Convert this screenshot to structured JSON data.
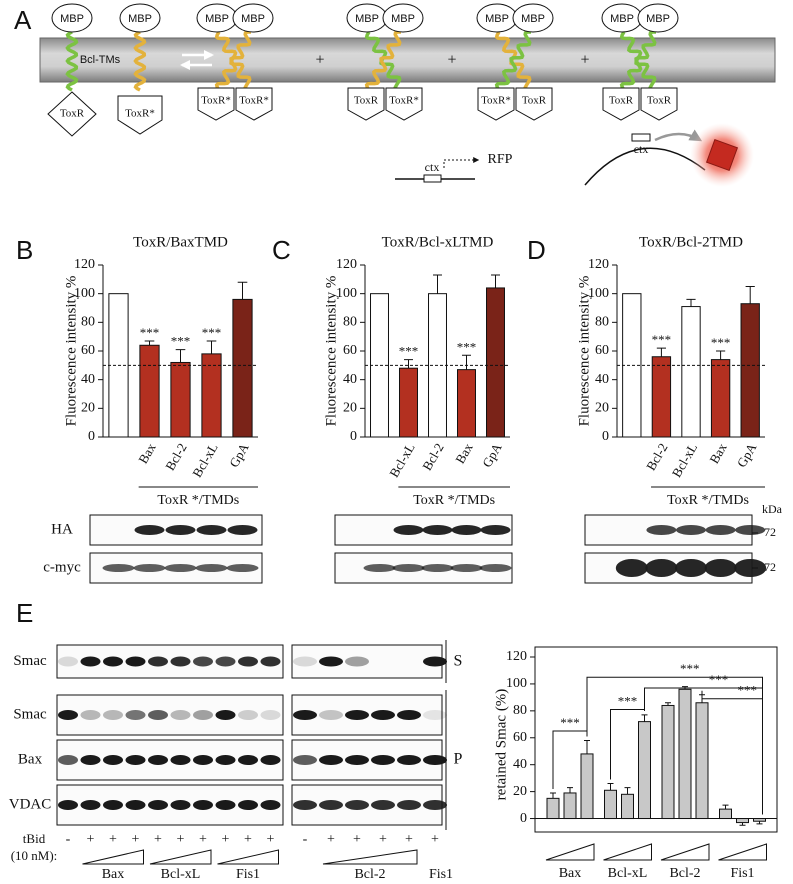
{
  "panels": [
    "A",
    "B",
    "C",
    "D",
    "E"
  ],
  "diagram": {
    "mbp": [
      "MBP",
      "MBP",
      "MBP",
      "MBP",
      "MBP",
      "MBP",
      "MBP",
      "MBP",
      "MBP",
      "MBP"
    ],
    "tm_label": "Bcl-TMs",
    "boxes": [
      "ToxR",
      "ToxR*",
      "ToxR*",
      "ToxR*",
      "ToxR",
      "ToxR*",
      "ToxR*",
      "ToxR",
      "ToxR",
      "ToxR"
    ],
    "plus": [
      "+",
      "+",
      "+"
    ],
    "ctx": [
      "ctx",
      "ctx"
    ],
    "reporter": "RFP"
  },
  "chart_data": [
    {
      "type": "bar",
      "title": "ToxR/BaxTMD",
      "ylabel": "Fluorescence intensity %",
      "categories": [
        null,
        "Bax",
        "Bcl-2",
        "Bcl-xL",
        "GpA"
      ],
      "values": [
        100,
        64,
        52,
        58,
        96
      ],
      "errors": [
        null,
        3,
        9,
        9,
        12
      ],
      "colors": [
        "#ffffff",
        "#b33020",
        "#b33020",
        "#b33020",
        "#7a2318"
      ],
      "stars": [
        null,
        "***",
        "***",
        "***",
        null
      ],
      "ylim": [
        0,
        120
      ],
      "yticks": [
        0,
        20,
        40,
        60,
        80,
        100,
        120
      ],
      "hline": 50,
      "group_label": "ToxR */TMDs",
      "blot_rows": [
        "HA",
        "c-myc"
      ]
    },
    {
      "type": "bar",
      "title": "ToxR/Bcl-xLTMD",
      "ylabel": "Fluorescence intensity %",
      "categories": [
        null,
        "Bcl-xL",
        "Bcl-2",
        "Bax",
        "GpA"
      ],
      "values": [
        100,
        48,
        100,
        47,
        104
      ],
      "errors": [
        null,
        6,
        13,
        10,
        9
      ],
      "colors": [
        "#ffffff",
        "#b33020",
        "#ffffff",
        "#b33020",
        "#7a2318"
      ],
      "stars": [
        null,
        "***",
        null,
        "***",
        null
      ],
      "ylim": [
        0,
        120
      ],
      "yticks": [
        0,
        20,
        40,
        60,
        80,
        100,
        120
      ],
      "hline": 50,
      "group_label": "ToxR */TMDs"
    },
    {
      "type": "bar",
      "title": "ToxR/Bcl-2TMD",
      "ylabel": "Fluorescence intensity %",
      "categories": [
        null,
        "Bcl-2",
        "Bcl-xL",
        "Bax",
        "GpA"
      ],
      "values": [
        100,
        56,
        91,
        54,
        93
      ],
      "errors": [
        null,
        6,
        5,
        6,
        12
      ],
      "colors": [
        "#ffffff",
        "#b33020",
        "#ffffff",
        "#b33020",
        "#7a2318"
      ],
      "stars": [
        null,
        "***",
        null,
        "***",
        null
      ],
      "ylim": [
        0,
        120
      ],
      "yticks": [
        0,
        20,
        40,
        60,
        80,
        100,
        120
      ],
      "hline": 50,
      "group_label": "ToxR */TMDs",
      "size_unit": "kDa",
      "size_markers": [
        72,
        72
      ]
    },
    {
      "type": "bar",
      "ylabel": "retained Smac (%)",
      "groups": [
        "Bax",
        "Bcl-xL",
        "Bcl-2",
        "Fis1"
      ],
      "values": [
        15,
        19,
        48,
        21,
        18,
        72,
        84,
        96,
        86,
        7,
        -3,
        -2
      ],
      "errors": [
        4,
        4,
        10,
        5,
        5,
        5,
        2,
        2,
        6,
        3,
        2,
        2
      ],
      "color": "#c8c8c8",
      "ylim": [
        -10,
        120
      ],
      "yticks": [
        0,
        20,
        40,
        60,
        80,
        100,
        120
      ],
      "significance": [
        "***",
        "***",
        "***",
        "***",
        "***"
      ]
    }
  ],
  "gel": {
    "rows": [
      "Smac",
      "Smac",
      "Bax",
      "VDAC"
    ],
    "fractions": [
      "S",
      "P"
    ],
    "treatment": "tBid",
    "concentration": "(10 nM):",
    "lanes_left": [
      "-",
      "+",
      "+",
      "+",
      "+",
      "+",
      "+",
      "+",
      "+",
      "+"
    ],
    "lanes_right": [
      "-",
      "+",
      "+",
      "+",
      "+",
      "+"
    ],
    "groups_left": [
      "Bax",
      "Bcl-xL",
      "Fis1"
    ],
    "groups_right": [
      "Bcl-2",
      "Fis1"
    ]
  }
}
